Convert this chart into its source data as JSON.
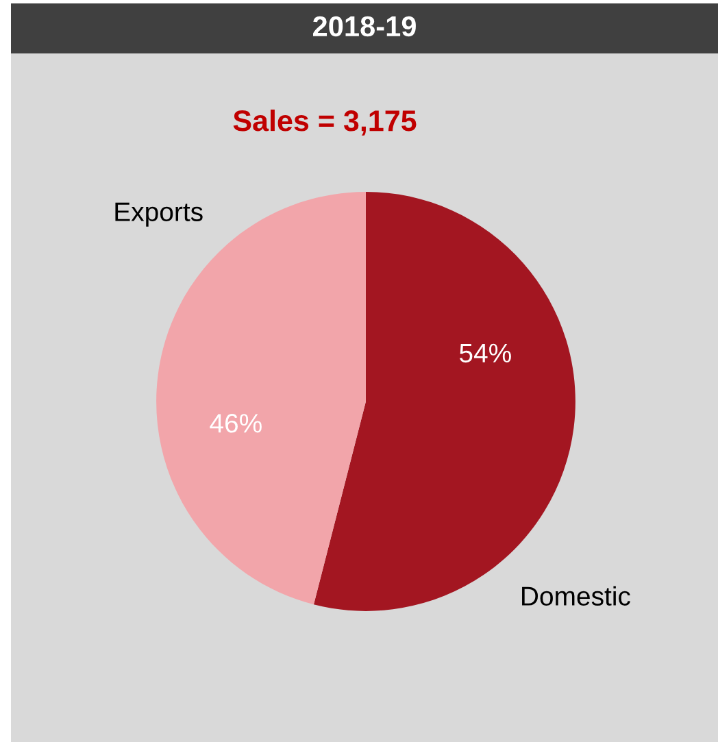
{
  "chart_data": {
    "type": "pie",
    "title": "2018-19",
    "subtitle": "Sales = 3,175",
    "categories": [
      "Domestic",
      "Exports"
    ],
    "values": [
      54,
      46
    ],
    "colors": [
      "#a31621",
      "#f2a5aa"
    ],
    "value_labels": [
      "54%",
      "46%"
    ]
  }
}
